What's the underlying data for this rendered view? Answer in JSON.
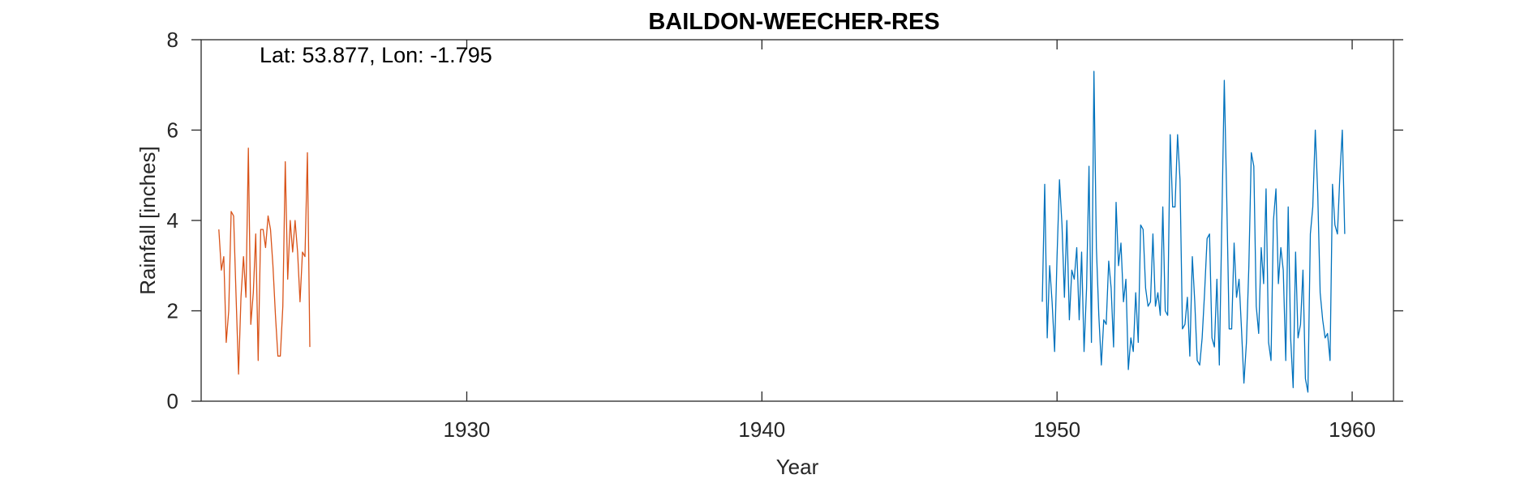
{
  "chart_data": {
    "type": "line",
    "title": "BAILDON-WEECHER-RES",
    "xlabel": "Year",
    "ylabel": "Rainfall [inches]",
    "annotation": "Lat: 53.877, Lon: -1.795",
    "xlim": [
      1921,
      1961.4
    ],
    "ylim": [
      0,
      8
    ],
    "xticks": [
      1930,
      1940,
      1950,
      1960
    ],
    "yticks": [
      0,
      2,
      4,
      6,
      8
    ],
    "grid": false,
    "legend": "none",
    "series": [
      {
        "color": "#D95319",
        "x_start": 1921.6,
        "step": 0.08333,
        "values": [
          3.8,
          2.9,
          3.2,
          1.3,
          2.0,
          4.2,
          4.1,
          2.3,
          0.6,
          2.3,
          3.2,
          2.3,
          5.6,
          1.7,
          2.4,
          3.7,
          0.9,
          3.8,
          3.8,
          3.4,
          4.1,
          3.8,
          3.0,
          1.9,
          1.0,
          1.0,
          2.1,
          5.3,
          2.7,
          4.0,
          3.3,
          4.0,
          3.3,
          2.2,
          3.3,
          3.2,
          5.5,
          1.2
        ]
      },
      {
        "color": "#0072BD",
        "x_start": 1949.5,
        "step": 0.08333,
        "values": [
          2.2,
          4.8,
          1.4,
          3.0,
          2.2,
          1.1,
          3.2,
          4.9,
          3.9,
          2.3,
          4.0,
          1.8,
          2.9,
          2.7,
          3.4,
          1.8,
          3.3,
          1.1,
          2.5,
          5.2,
          1.3,
          7.3,
          3.4,
          1.9,
          0.8,
          1.8,
          1.7,
          3.1,
          2.5,
          1.2,
          4.4,
          3.0,
          3.5,
          2.2,
          2.7,
          0.7,
          1.4,
          1.1,
          2.4,
          1.3,
          3.9,
          3.8,
          2.5,
          2.1,
          2.2,
          3.7,
          2.1,
          2.4,
          1.9,
          4.3,
          2.0,
          1.9,
          5.9,
          4.3,
          4.3,
          5.9,
          4.9,
          1.6,
          1.7,
          2.3,
          1.0,
          3.2,
          2.2,
          0.9,
          0.8,
          1.4,
          2.4,
          3.6,
          3.7,
          1.4,
          1.2,
          2.7,
          0.8,
          3.9,
          7.1,
          4.5,
          1.6,
          1.6,
          3.5,
          2.3,
          2.7,
          1.6,
          0.4,
          1.3,
          3.0,
          5.5,
          5.2,
          2.1,
          1.5,
          3.4,
          2.6,
          4.7,
          1.3,
          0.9,
          4.0,
          4.7,
          2.6,
          3.4,
          2.9,
          0.9,
          4.3,
          1.4,
          0.3,
          3.3,
          1.4,
          1.7,
          2.9,
          0.5,
          0.2,
          3.7,
          4.3,
          6.0,
          4.6,
          2.4,
          1.8,
          1.4,
          1.5,
          0.9,
          4.8,
          3.9,
          3.7,
          5.0,
          6.0,
          3.7
        ]
      }
    ]
  }
}
